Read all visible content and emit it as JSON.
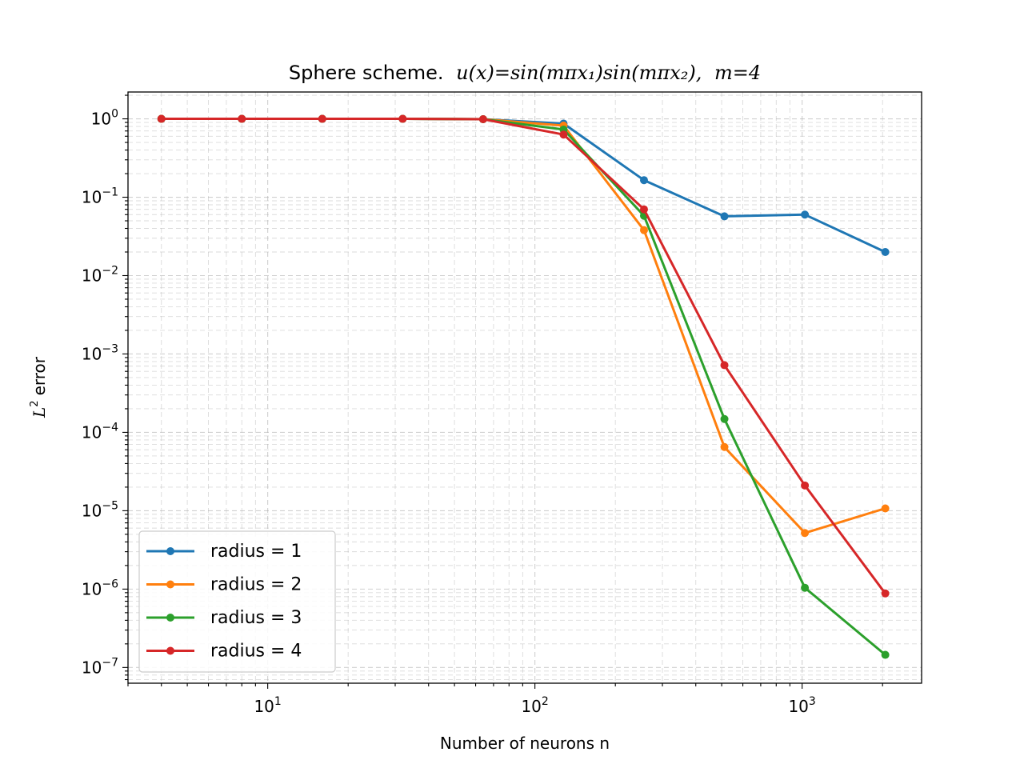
{
  "chart_data": {
    "type": "line",
    "title": {
      "prefix": "Sphere scheme.",
      "formula": "u(x)=sin(mπx₁)sin(mπx₂),",
      "suffix": "m=4"
    },
    "xlabel": "Number of neurons n",
    "ylabel": {
      "symbol": "L",
      "superscript": "2",
      "text": "error"
    },
    "xscale": "log",
    "yscale": "log",
    "xlim": [
      3.0,
      2800
    ],
    "ylim": [
      6.3e-08,
      2.2
    ],
    "grid": {
      "major": true,
      "minor": true,
      "style": "dashed"
    },
    "legend_position": "lower-left",
    "x": [
      4,
      8,
      16,
      32,
      64,
      128,
      256,
      512,
      1024,
      2048
    ],
    "series": [
      {
        "name": "radius = 1",
        "color": "#1f77b4",
        "values": [
          1.0,
          1.0,
          1.0,
          1.0,
          0.99,
          0.87,
          0.165,
          0.057,
          0.06,
          0.02
        ]
      },
      {
        "name": "radius = 2",
        "color": "#ff7f0e",
        "values": [
          1.0,
          1.0,
          1.0,
          1.0,
          0.99,
          0.82,
          0.038,
          6.5e-05,
          5.2e-06,
          1.07e-05
        ]
      },
      {
        "name": "radius = 3",
        "color": "#2ca02c",
        "values": [
          1.0,
          1.0,
          1.0,
          1.0,
          0.99,
          0.73,
          0.058,
          0.000148,
          1.04e-06,
          1.45e-07
        ]
      },
      {
        "name": "radius = 4",
        "color": "#d62728",
        "values": [
          1.0,
          1.0,
          1.0,
          1.0,
          0.99,
          0.63,
          0.07,
          0.00072,
          2.1e-05,
          8.8e-07
        ]
      }
    ],
    "x_ticks": [
      {
        "value": 10,
        "base": "10",
        "exp": "1"
      },
      {
        "value": 100,
        "base": "10",
        "exp": "2"
      },
      {
        "value": 1000,
        "base": "10",
        "exp": "3"
      }
    ],
    "y_ticks": [
      {
        "value": 1,
        "base": "10",
        "exp": "0"
      },
      {
        "value": 0.1,
        "base": "10",
        "exp": "−1"
      },
      {
        "value": 0.01,
        "base": "10",
        "exp": "−2"
      },
      {
        "value": 0.001,
        "base": "10",
        "exp": "−3"
      },
      {
        "value": 0.0001,
        "base": "10",
        "exp": "−4"
      },
      {
        "value": 1e-05,
        "base": "10",
        "exp": "−5"
      },
      {
        "value": 1e-06,
        "base": "10",
        "exp": "−6"
      },
      {
        "value": 1e-07,
        "base": "10",
        "exp": "−7"
      }
    ]
  }
}
